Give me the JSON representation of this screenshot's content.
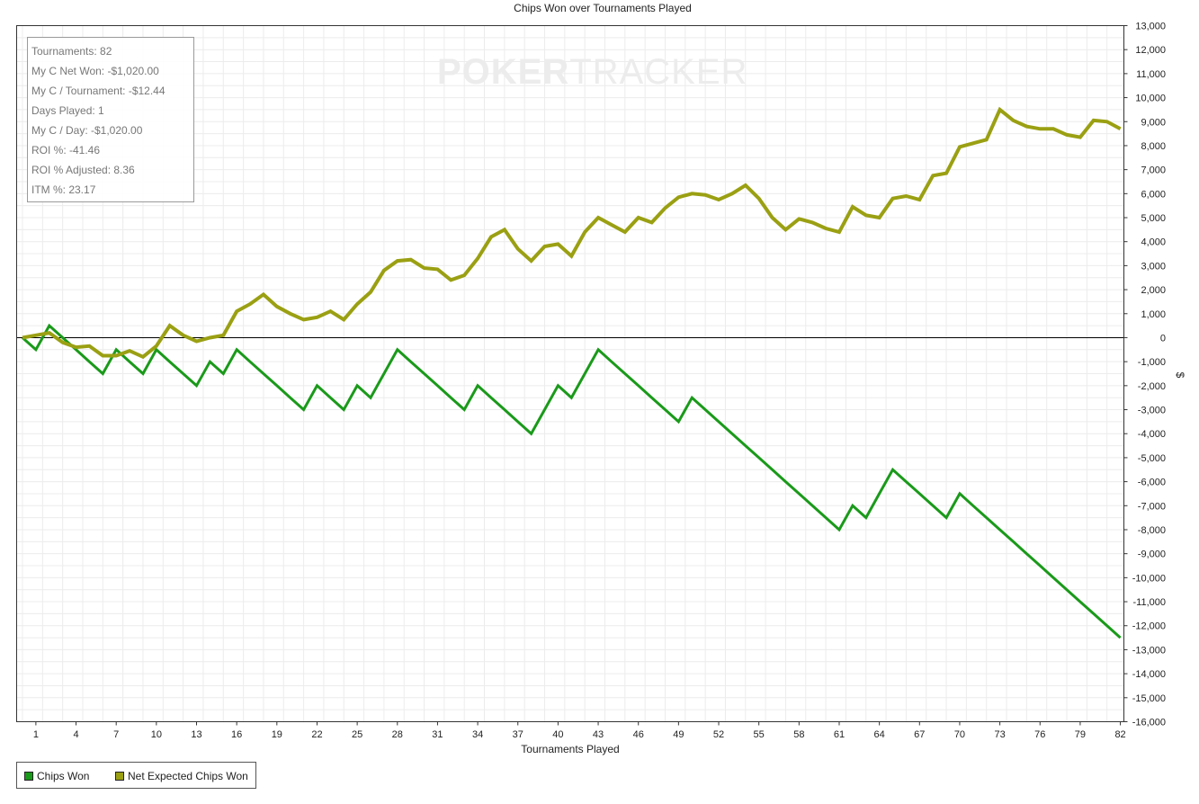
{
  "chart_data": {
    "type": "line",
    "title": "Chips Won over Tournaments Played",
    "xlabel": "Tournaments Played",
    "ylabel": "$",
    "xlim": [
      1,
      82
    ],
    "ylim": [
      -16000,
      13000
    ],
    "x_ticks": [
      "1",
      "4",
      "7",
      "10",
      "13",
      "16",
      "19",
      "22",
      "25",
      "28",
      "31",
      "34",
      "37",
      "40",
      "43",
      "46",
      "49",
      "52",
      "55",
      "58",
      "61",
      "64",
      "67",
      "70",
      "73",
      "76",
      "79",
      "82"
    ],
    "y_ticks": [
      "13,000",
      "12,000",
      "11,000",
      "10,000",
      "9,000",
      "8,000",
      "7,000",
      "6,000",
      "5,000",
      "4,000",
      "3,000",
      "2,000",
      "1,000",
      "0",
      "-1,000",
      "-2,000",
      "-3,000",
      "-4,000",
      "-5,000",
      "-6,000",
      "-7,000",
      "-8,000",
      "-9,000",
      "-10,000",
      "-11,000",
      "-12,000",
      "-13,000",
      "-14,000",
      "-15,000",
      "-16,000"
    ],
    "grid": true,
    "legend_position": "bottom-left",
    "series": [
      {
        "name": "Chips Won",
        "color": "#1a9a1a",
        "x": [
          0,
          1,
          2,
          3,
          4,
          5,
          6,
          7,
          8,
          9,
          10,
          11,
          12,
          13,
          14,
          15,
          16,
          17,
          18,
          19,
          20,
          21,
          22,
          23,
          24,
          25,
          26,
          27,
          28,
          29,
          30,
          31,
          32,
          33,
          34,
          35,
          36,
          37,
          38,
          39,
          40,
          41,
          42,
          43,
          44,
          45,
          46,
          47,
          48,
          49,
          50,
          51,
          52,
          53,
          54,
          55,
          56,
          57,
          58,
          59,
          60,
          61,
          62,
          63,
          64,
          65,
          66,
          67,
          68,
          69,
          70,
          71,
          72,
          73,
          74,
          75,
          76,
          77,
          78,
          79,
          80,
          81,
          82
        ],
        "values": [
          0,
          -500,
          500,
          0,
          -500,
          -1000,
          -1500,
          -500,
          -1000,
          -1500,
          -500,
          -1000,
          -1500,
          -2000,
          -1000,
          -1500,
          -500,
          -1000,
          -1500,
          -2000,
          -2500,
          -3000,
          -2000,
          -2500,
          -3000,
          -2000,
          -2500,
          -1500,
          -500,
          -1000,
          -1500,
          -2000,
          -2500,
          -3000,
          -2000,
          -2500,
          -3000,
          -3500,
          -4000,
          -3000,
          -2000,
          -2500,
          -1500,
          -500,
          -1000,
          -1500,
          -2000,
          -2500,
          -3000,
          -3500,
          -2500,
          -3000,
          -3500,
          -4000,
          -4500,
          -5000,
          -5500,
          -6000,
          -6500,
          -7000,
          -7500,
          -8000,
          -7000,
          -7500,
          -6500,
          -5500,
          -6000,
          -6500,
          -7000,
          -7500,
          -6500,
          -7000,
          -7500,
          -8000,
          -8500,
          -9000,
          -9500,
          -10000,
          -10500,
          -11000,
          -11500,
          -12000,
          -12500
        ]
      },
      {
        "name": "Net Expected Chips Won",
        "color": "#9aa012",
        "x": [
          0,
          1,
          2,
          3,
          4,
          5,
          6,
          7,
          8,
          9,
          10,
          11,
          12,
          13,
          14,
          15,
          16,
          17,
          18,
          19,
          20,
          21,
          22,
          23,
          24,
          25,
          26,
          27,
          28,
          29,
          30,
          31,
          32,
          33,
          34,
          35,
          36,
          37,
          38,
          39,
          40,
          41,
          42,
          43,
          44,
          45,
          46,
          47,
          48,
          49,
          50,
          51,
          52,
          53,
          54,
          55,
          56,
          57,
          58,
          59,
          60,
          61,
          62,
          63,
          64,
          65,
          66,
          67,
          68,
          69,
          70,
          71,
          72,
          73,
          74,
          75,
          76,
          77,
          78,
          79,
          80,
          81,
          82
        ],
        "values": [
          0,
          100,
          200,
          -200,
          -400,
          -350,
          -750,
          -750,
          -550,
          -800,
          -350,
          500,
          100,
          -150,
          0,
          100,
          1100,
          1400,
          1800,
          1300,
          1000,
          750,
          850,
          1100,
          750,
          1400,
          1900,
          2800,
          3200,
          3250,
          2900,
          2850,
          2400,
          2600,
          3300,
          4200,
          4500,
          3700,
          3200,
          3800,
          3900,
          3400,
          4400,
          5000,
          4700,
          4400,
          5000,
          4800,
          5400,
          5850,
          6000,
          5950,
          5750,
          6000,
          6350,
          5800,
          5000,
          4500,
          4950,
          4800,
          4550,
          4400,
          5450,
          5100,
          5000,
          5800,
          5900,
          5750,
          6750,
          6850,
          7950,
          8100,
          8250,
          9500,
          9050,
          8800,
          8700,
          8700,
          8450,
          8350,
          9050,
          9000,
          8700
        ]
      }
    ]
  },
  "stats_box": {
    "tournaments": "Tournaments: 82",
    "net_won": "My C Net Won: -$1,020.00",
    "per_tournament": "My C / Tournament: -$12.44",
    "days_played": "Days Played: 1",
    "per_day": "My C / Day: -$1,020.00",
    "roi": "ROI %: -41.46",
    "roi_adjusted": "ROI % Adjusted: 8.36",
    "itm": "ITM %: 23.17"
  },
  "watermark": {
    "part1": "POKER",
    "part2": "TRACKER"
  },
  "legend": [
    {
      "label": "Chips Won",
      "color": "#1a9a1a"
    },
    {
      "label": "Net Expected Chips Won",
      "color": "#9aa012"
    }
  ]
}
